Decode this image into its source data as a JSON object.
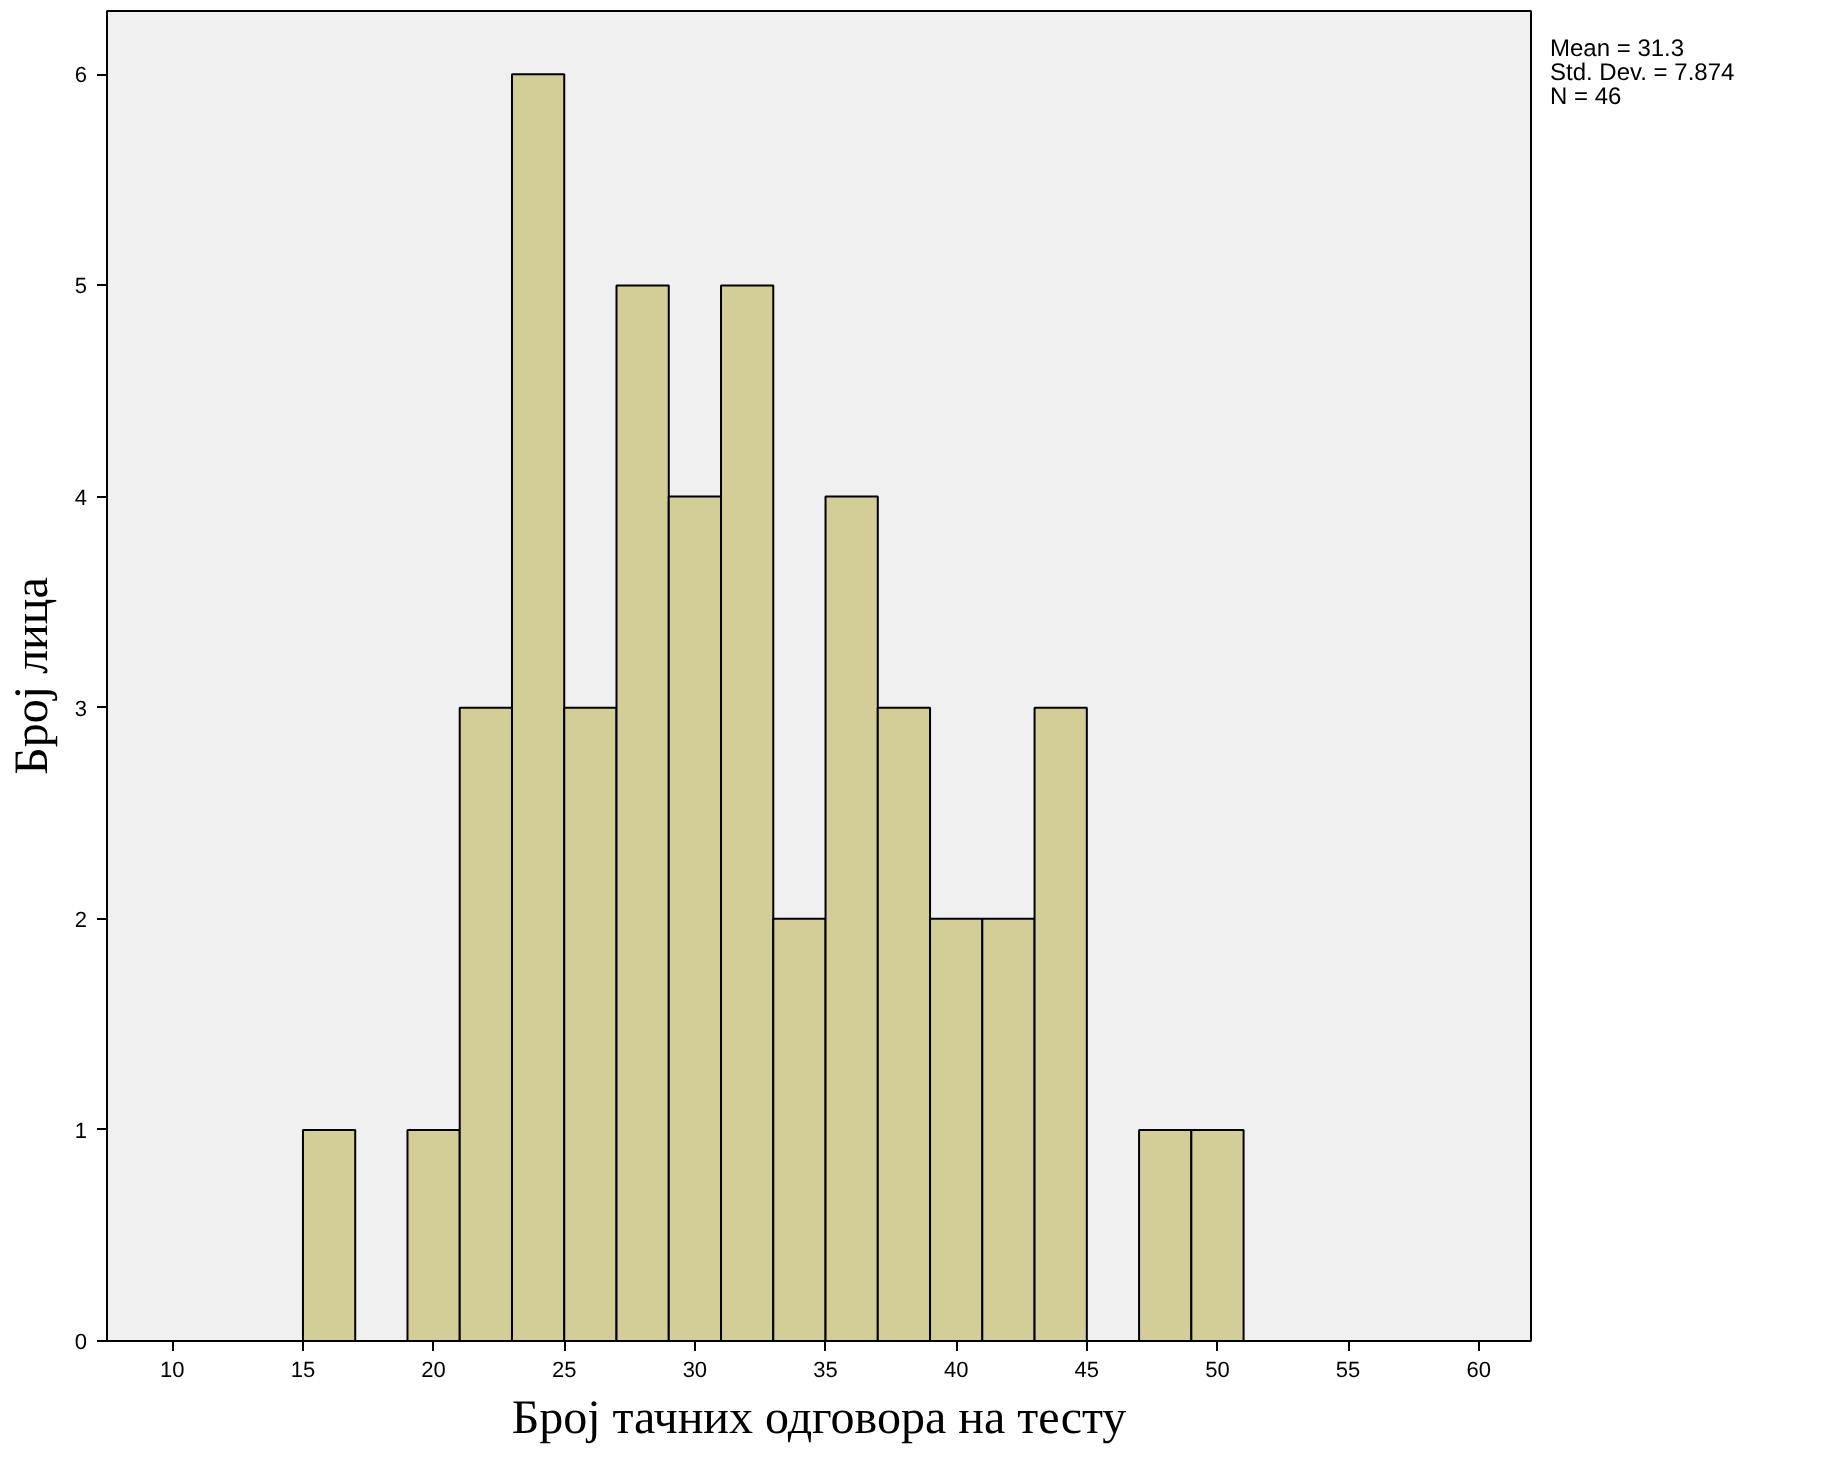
{
  "chart_data": {
    "type": "histogram",
    "xlabel": "Број тачних одговора на тесту",
    "ylabel": "Број лица",
    "bins": [
      15,
      17,
      19,
      21,
      23,
      25,
      27,
      29,
      31,
      33,
      35,
      37,
      39,
      41,
      43,
      45,
      47,
      49,
      51
    ],
    "values": [
      1,
      0,
      1,
      3,
      6,
      3,
      5,
      4,
      5,
      2,
      4,
      3,
      2,
      2,
      3,
      0,
      1,
      1
    ],
    "color": "#d3ce97",
    "xlim": [
      7.5,
      62
    ],
    "xticks": [
      10,
      15,
      20,
      25,
      30,
      35,
      40,
      45,
      50,
      55,
      60
    ],
    "ylim": [
      0,
      6.3
    ],
    "yticks": [
      0,
      1,
      2,
      3,
      4,
      5,
      6
    ],
    "grid": false,
    "annotations": [
      "Mean = 31.3",
      "Std. Dev. = 7.874",
      "N = 46"
    ]
  }
}
